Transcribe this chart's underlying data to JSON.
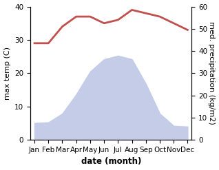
{
  "months": [
    "Jan",
    "Feb",
    "Mar",
    "Apr",
    "May",
    "Jun",
    "Jul",
    "Aug",
    "Sep",
    "Oct",
    "Nov",
    "Dec"
  ],
  "temperature": [
    29,
    29,
    34,
    37,
    37,
    35,
    36,
    39,
    38,
    37,
    35,
    33
  ],
  "precipitation": [
    48,
    50,
    75,
    130,
    195,
    230,
    240,
    230,
    160,
    75,
    40,
    38
  ],
  "temp_color": "#c0504d",
  "precip_fill_color": "#c5cce8",
  "ylabel_left": "max temp (C)",
  "ylabel_right": "med. precipitation (kg/m2)",
  "xlabel": "date (month)",
  "ylim_left": [
    0,
    40
  ],
  "ylim_right": [
    0,
    380
  ],
  "yticks_left": [
    0,
    10,
    20,
    30,
    40
  ],
  "yticks_right": [
    0,
    10,
    20,
    30,
    40,
    50,
    60
  ],
  "tick_fontsize": 7.5,
  "xlabel_fontsize": 8.5,
  "ylabel_fontsize": 8
}
